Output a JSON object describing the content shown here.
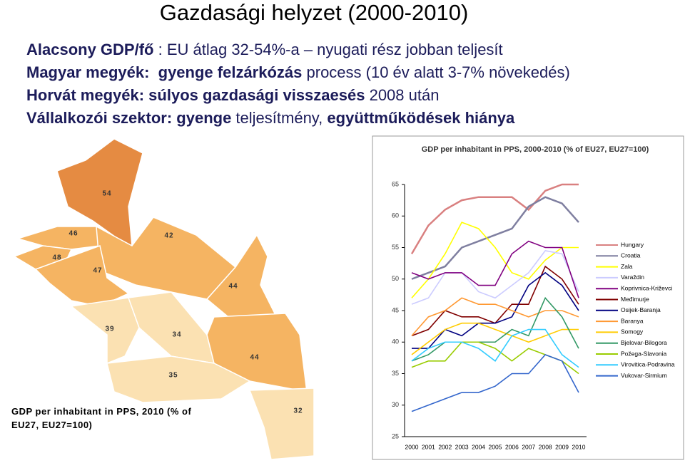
{
  "slide": {
    "title": "Gazdasági helyzet (2000-2010)",
    "bullets": [
      [
        {
          "text": "Alacsony GDP/fő",
          "bold": true
        },
        {
          "text": " : EU átlag 32-54%-a – nyugati rész jobban teljesít",
          "bold": false
        }
      ],
      [
        {
          "text": "Magyar megyék:  gyenge felzárkózás",
          "bold": true
        },
        {
          "text": " process (10 év alatt 3-7% növekedés)",
          "bold": false
        }
      ],
      [
        {
          "text": "Horvát megyék: súlyos gazdasági visszaesés",
          "bold": true
        },
        {
          "text": " 2008 után",
          "bold": false
        }
      ],
      [
        {
          "text": "Vállalkozói szektor: gyenge",
          "bold": true
        },
        {
          "text": " teljesítmény, ",
          "bold": false
        },
        {
          "text": "együttműködések hiánya",
          "bold": true
        }
      ]
    ]
  },
  "map": {
    "caption": "GDP per inhabitant in PPS, 2010 (% of EU27, EU27=100)",
    "regions": [
      {
        "label": "54"
      },
      {
        "label": "46"
      },
      {
        "label": "42"
      },
      {
        "label": "48"
      },
      {
        "label": "47"
      },
      {
        "label": "44"
      },
      {
        "label": "39"
      },
      {
        "label": "34"
      },
      {
        "label": "44"
      },
      {
        "label": "35"
      },
      {
        "label": "32"
      }
    ]
  },
  "chart_data": {
    "type": "line",
    "title": "GDP per inhabitant in PPS, 2000-2010 (% of EU27, EU27=100)",
    "categories": [
      "2000",
      "2001",
      "2002",
      "2003",
      "2004",
      "2005",
      "2006",
      "2007",
      "2008",
      "2009",
      "2010"
    ],
    "ylim": [
      25,
      65
    ],
    "yticks": [
      25,
      30,
      35,
      40,
      45,
      50,
      55,
      60,
      65
    ],
    "series": [
      {
        "name": "Hungary",
        "color": "#d98080",
        "values": [
          54,
          58.5,
          61,
          62.5,
          63,
          63,
          63,
          61,
          64,
          65,
          65
        ]
      },
      {
        "name": "Croatia",
        "color": "#7f7fa0",
        "values": [
          50,
          51,
          52,
          55,
          56,
          57,
          58,
          61.5,
          63,
          62,
          59
        ]
      },
      {
        "name": "Zala",
        "color": "#ffff00",
        "values": [
          47,
          50,
          54,
          59,
          58,
          55,
          51,
          50,
          53,
          55,
          55
        ]
      },
      {
        "name": "Varaždin",
        "color": "#ccccff",
        "values": [
          46,
          47,
          51,
          51,
          48,
          47,
          49,
          51,
          54.5,
          54,
          48
        ]
      },
      {
        "name": "Koprivnica-Križevci",
        "color": "#800080",
        "values": [
          51,
          50,
          51,
          51,
          49,
          49,
          54,
          56,
          55,
          55,
          47
        ]
      },
      {
        "name": "Međimurje",
        "color": "#800000",
        "values": [
          41,
          42,
          45,
          44,
          44,
          43,
          46,
          46,
          52,
          50,
          46
        ]
      },
      {
        "name": "Osijek-Baranja",
        "color": "#000080",
        "values": [
          39,
          39,
          42,
          41,
          43,
          43,
          44,
          49,
          51,
          49,
          45
        ]
      },
      {
        "name": "Baranya",
        "color": "#ff9933",
        "values": [
          41,
          44,
          45,
          47,
          46,
          46,
          45,
          44,
          45,
          45,
          44
        ]
      },
      {
        "name": "Somogy",
        "color": "#ffcc00",
        "values": [
          38,
          40,
          42,
          43,
          43,
          42,
          41,
          40,
          41,
          42,
          42
        ]
      },
      {
        "name": "Bjelovar-Bilogora",
        "color": "#339966",
        "values": [
          37,
          38,
          40,
          40,
          40,
          40,
          42,
          41,
          47,
          44,
          39
        ]
      },
      {
        "name": "Požega-Slavonia",
        "color": "#99cc00",
        "values": [
          36,
          37,
          37,
          40,
          40,
          39,
          37,
          39,
          38,
          37,
          35
        ]
      },
      {
        "name": "Virovitica-Podravina",
        "color": "#33ccff",
        "values": [
          37,
          39,
          40,
          40,
          39,
          37,
          41,
          42,
          42,
          38,
          36
        ]
      },
      {
        "name": "Vukovar-Sirmium",
        "color": "#3366cc",
        "values": [
          29,
          30,
          31,
          32,
          32,
          33,
          35,
          35,
          38,
          37,
          32
        ]
      }
    ]
  }
}
